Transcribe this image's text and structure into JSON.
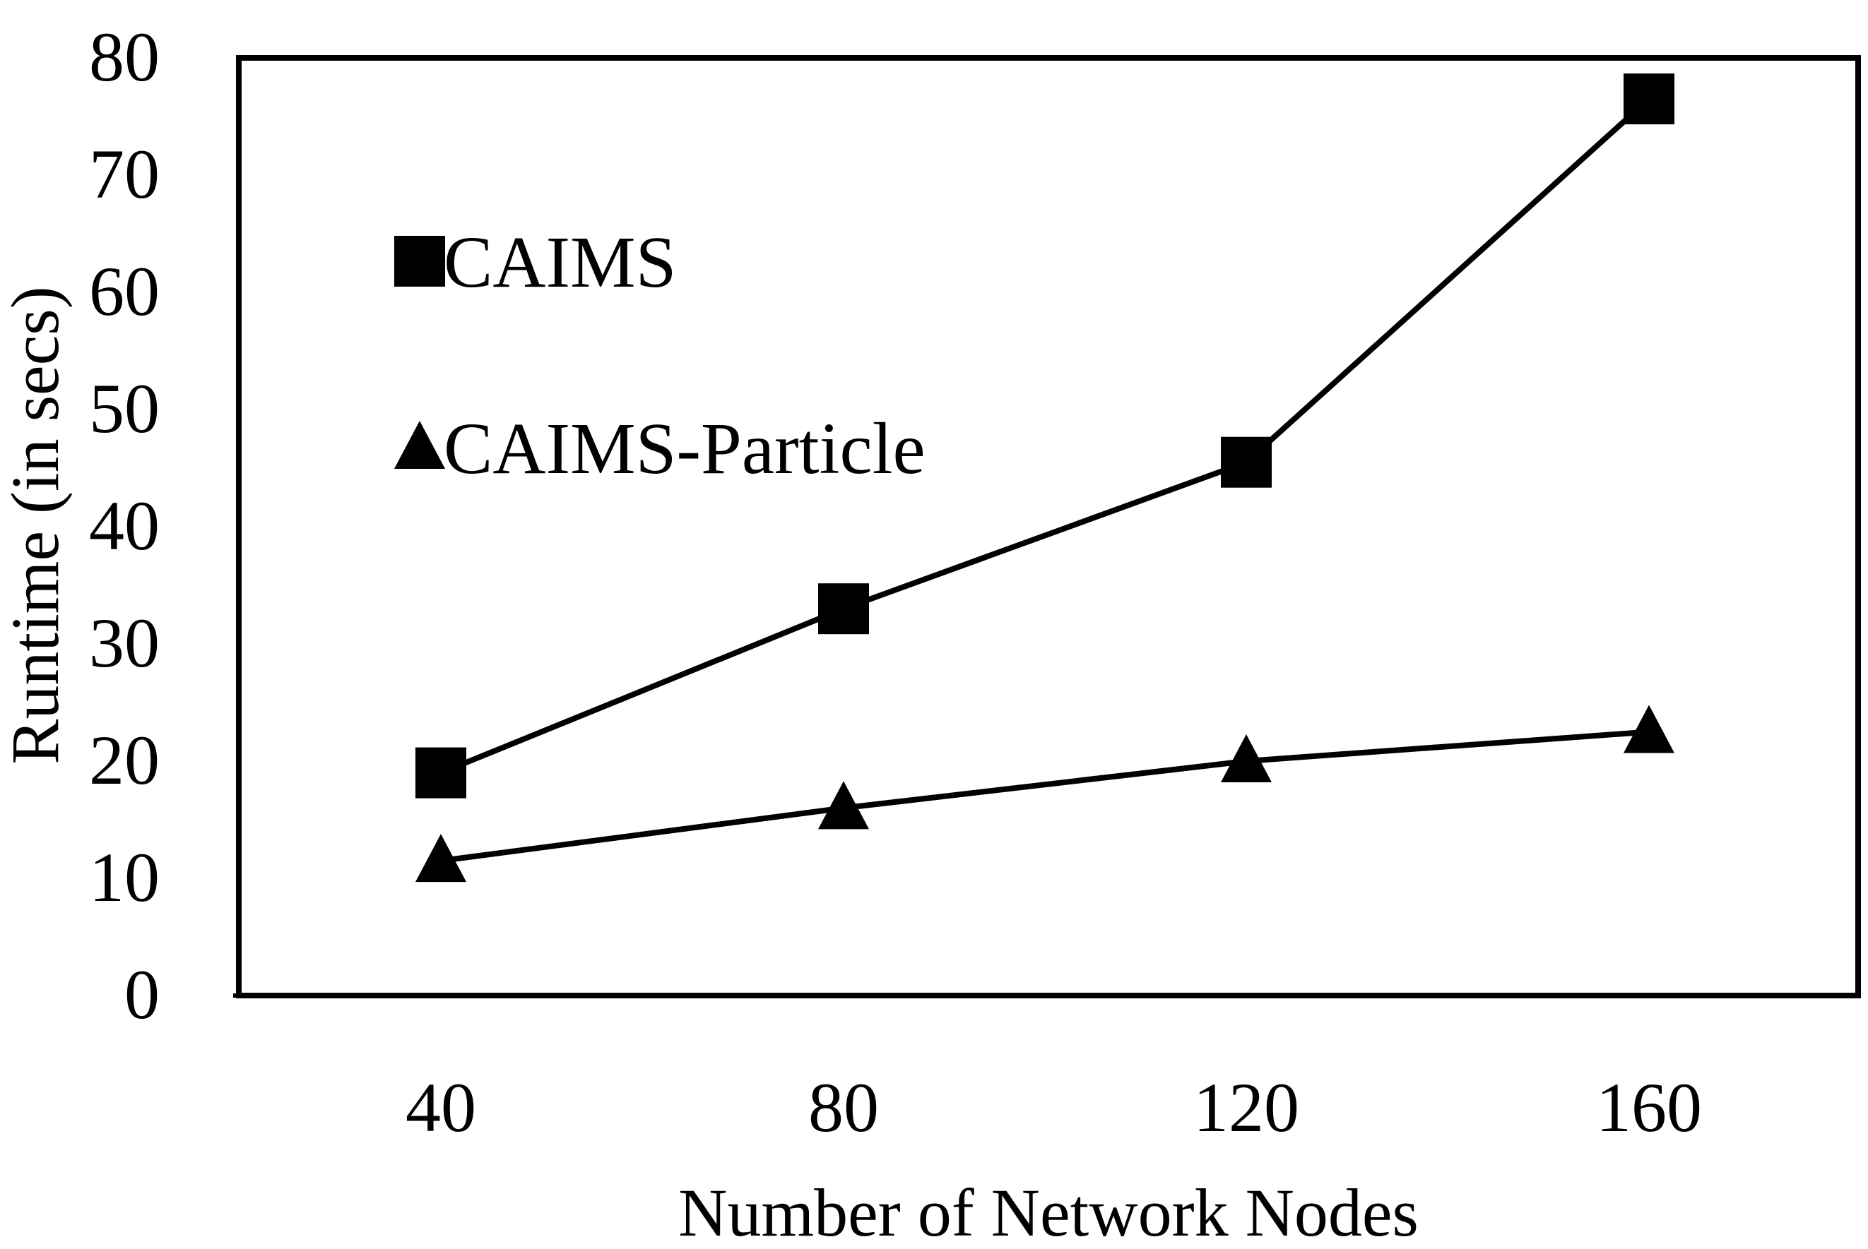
{
  "chart_data": {
    "type": "line",
    "title": "",
    "xlabel": "Number of Network Nodes",
    "ylabel": "Runtime (in secs)",
    "categories": [
      "40",
      "80",
      "120",
      "160"
    ],
    "x": [
      40,
      80,
      120,
      160
    ],
    "ylim": [
      0,
      80
    ],
    "yticks": [
      "0",
      "10",
      "20",
      "30",
      "40",
      "50",
      "60",
      "70",
      "80"
    ],
    "grid": false,
    "legend_position": "top-left",
    "series": [
      {
        "name": "CAIMS",
        "marker": "square",
        "color": "#000000",
        "values": [
          19,
          33,
          45.5,
          76.5
        ]
      },
      {
        "name": "CAIMS-Particle",
        "marker": "triangle",
        "color": "#000000",
        "values": [
          11.5,
          16,
          20,
          22.5
        ]
      }
    ]
  }
}
